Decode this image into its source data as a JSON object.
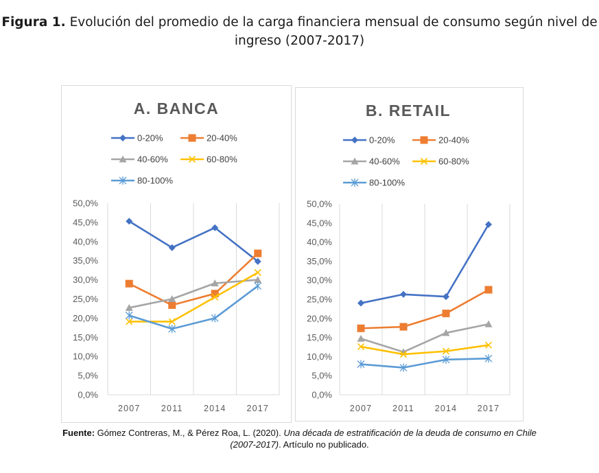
{
  "figure": {
    "label": "Figura 1.",
    "title_line1": "Evolución del promedio de la carga financiera mensual de consumo según nivel de",
    "title_line2": "ingreso (2007-2017)"
  },
  "source": {
    "label": "Fuente:",
    "authors": " Gómez Contreras, M., & Pérez Roa, L. (2020). ",
    "title_italic_1": "Una década de estratificación de la deuda de consumo en Chile",
    "title_italic_2": "(2007-2017)",
    "suffix": ". Artículo no publicado."
  },
  "colors": {
    "0-20%": "#4472C4",
    "20-40%": "#ED7D31",
    "40-60%": "#A5A5A5",
    "60-80%": "#FFC000",
    "80-100%": "#5B9BD5",
    "panel_border": "#D9D9D9",
    "grid": "#D9D9D9",
    "title_text": "#595959"
  },
  "chart_data": [
    {
      "type": "line",
      "title": "A. BANCA",
      "categories": [
        "2007",
        "2011",
        "2014",
        "2017"
      ],
      "ylim": [
        0,
        50
      ],
      "y_ticks": [
        "0,0%",
        "5,0%",
        "10,0%",
        "15,0%",
        "20,0%",
        "25,0%",
        "30,0%",
        "35,0%",
        "40,0%",
        "45,0%",
        "50,0%"
      ],
      "grid": "vertical",
      "legend_position": "top",
      "series": [
        {
          "name": "0-20%",
          "marker": "diamond",
          "values": [
            45.3,
            38.4,
            43.6,
            34.8
          ]
        },
        {
          "name": "20-40%",
          "marker": "square",
          "values": [
            29.0,
            23.4,
            26.4,
            36.9
          ]
        },
        {
          "name": "40-60%",
          "marker": "triangle",
          "values": [
            22.7,
            25.0,
            29.1,
            30.0
          ]
        },
        {
          "name": "60-80%",
          "marker": "x",
          "values": [
            19.1,
            19.1,
            25.5,
            31.9
          ]
        },
        {
          "name": "80-100%",
          "marker": "star",
          "values": [
            20.7,
            17.2,
            20.0,
            28.4
          ]
        }
      ]
    },
    {
      "type": "line",
      "title": "B. RETAIL",
      "categories": [
        "2007",
        "2011",
        "2014",
        "2017"
      ],
      "ylim": [
        0,
        50
      ],
      "y_ticks": [
        "0,0%",
        "5,0%",
        "10,0%",
        "15,0%",
        "20,0%",
        "25,0%",
        "30,0%",
        "35,0%",
        "40,0%",
        "45,0%",
        "50,0%"
      ],
      "grid": "vertical",
      "legend_position": "top",
      "series": [
        {
          "name": "0-20%",
          "marker": "diamond",
          "values": [
            24.0,
            26.3,
            25.7,
            44.6
          ]
        },
        {
          "name": "20-40%",
          "marker": "square",
          "values": [
            17.4,
            17.8,
            21.3,
            27.5
          ]
        },
        {
          "name": "40-60%",
          "marker": "triangle",
          "values": [
            14.7,
            11.2,
            16.2,
            18.5
          ]
        },
        {
          "name": "60-80%",
          "marker": "x",
          "values": [
            12.6,
            10.6,
            11.4,
            13.0
          ]
        },
        {
          "name": "80-100%",
          "marker": "star",
          "values": [
            8.0,
            7.1,
            9.2,
            9.5
          ]
        }
      ]
    }
  ]
}
